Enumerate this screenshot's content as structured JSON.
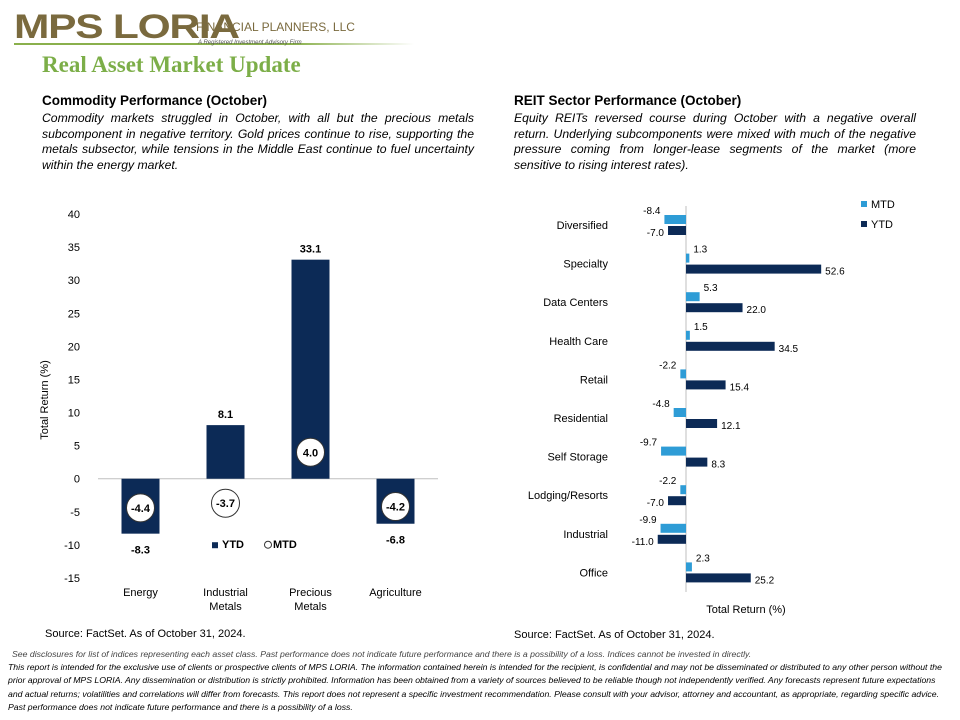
{
  "header": {
    "logo_main": "MPS LORIA",
    "logo_sub": "FINANCIAL PLANNERS, LLC",
    "logo_tagline": "A Registered Investment Advisory Firm",
    "page_title": "Real Asset Market Update"
  },
  "left_section": {
    "title": "Commodity  Performance (October)",
    "text": "Commodity markets struggled in October, with all but the precious metals subcomponent in negative territory.  Gold prices continue to rise, supporting the metals subsector, while tensions in the Middle East continue to fuel uncertainty within the energy market.",
    "source": "Source: FactSet. As of October 31, 2024."
  },
  "right_section": {
    "title": "REIT Sector Performance (October)",
    "text": "Equity REITs reversed course during October with a negative overall return.  Underlying subcomponents were mixed with much of the negative pressure coming from longer-lease segments of the market (more sensitive to rising interest rates).",
    "source": "Source: FactSet. As of October 31, 2024."
  },
  "chart_data": [
    {
      "type": "bar",
      "title": "",
      "xlabel": "",
      "ylabel": "Total Return (%)",
      "categories": [
        "Energy",
        "Industrial Metals",
        "Precious Metals",
        "Agriculture"
      ],
      "category_lines": [
        [
          "Energy"
        ],
        [
          "Industrial",
          "Metals"
        ],
        [
          "Precious",
          "Metals"
        ],
        [
          "Agriculture"
        ]
      ],
      "ylim": [
        -15,
        40
      ],
      "yticks": [
        40,
        35,
        30,
        25,
        20,
        15,
        10,
        5,
        0,
        -5,
        -10,
        -15
      ],
      "series": [
        {
          "name": "YTD",
          "values": [
            -8.3,
            8.1,
            33.1,
            -6.8
          ],
          "color": "#0c2a56"
        },
        {
          "name": "MTD",
          "values": [
            -4.4,
            -3.7,
            4.0,
            -4.2
          ],
          "marker": "circle"
        }
      ],
      "legend": "bottom-center",
      "grid": false
    },
    {
      "type": "bar",
      "orientation": "horizontal",
      "title": "",
      "xlabel": "Total Return (%)",
      "ylabel": "",
      "categories": [
        "Diversified",
        "Specialty",
        "Data Centers",
        "Health Care",
        "Retail",
        "Residential",
        "Self Storage",
        "Lodging/Resorts",
        "Industrial",
        "Office"
      ],
      "series": [
        {
          "name": "MTD",
          "values": [
            -8.4,
            1.3,
            5.3,
            1.5,
            -2.2,
            -4.8,
            -9.7,
            -2.2,
            -9.9,
            2.3
          ],
          "color": "#2e9cd6"
        },
        {
          "name": "YTD",
          "values": [
            -7.0,
            52.6,
            22.0,
            34.5,
            15.4,
            12.1,
            8.3,
            -7.0,
            -11.0,
            25.2
          ],
          "color": "#0c2a56"
        }
      ],
      "legend": "top-right",
      "grid": false
    }
  ],
  "footer": {
    "line1": "See disclosures for list of indices representing each asset class. Past performance does not indicate future performance and there is a possibility of a loss. Indices cannot be invested in directly.",
    "line2": "This report is intended for the exclusive use of clients or prospective clients of MPS LORIA. The information contained herein is intended for the recipient, is confidential and may not be disseminated or distributed to any other person without the prior approval of MPS LORIA. Any dissemination or distribution is strictly prohibited. Information has been obtained from a variety of sources believed to be reliable though not independently verified. Any forecasts represent future expectations and actual returns; volatilities and correlations will differ from forecasts. This report does not represent a specific investment recommendation. Please consult with your advisor, attorney and accountant, as appropriate, regarding specific advice. Past performance does not indicate future performance and there is a possibility of a loss."
  }
}
